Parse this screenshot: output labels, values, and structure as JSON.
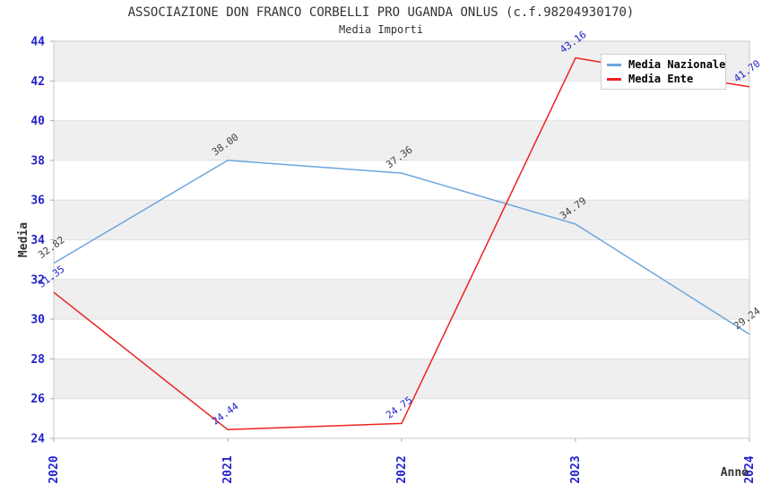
{
  "title": "ASSOCIAZIONE DON FRANCO CORBELLI PRO UGANDA ONLUS (c.f.98204930170)",
  "subtitle": "Media Importi",
  "axes": {
    "y_label": "Media",
    "x_label": "Anno"
  },
  "legend": {
    "items": [
      {
        "label": "Media Nazionale",
        "color": "#6ca6e0"
      },
      {
        "label": "Media Ente",
        "color": "#ee2222"
      }
    ]
  },
  "chart_data": {
    "type": "line",
    "title": "ASSOCIAZIONE DON FRANCO CORBELLI PRO UGANDA ONLUS (c.f.98204930170)",
    "subtitle": "Media Importi",
    "xlabel": "Anno",
    "ylabel": "Media",
    "categories": [
      "2020",
      "2021",
      "2022",
      "2023",
      "2024"
    ],
    "series": [
      {
        "name": "Media Nazionale",
        "color": "#6ca6e0",
        "label_color": "#404040",
        "values": [
          32.82,
          38.0,
          37.36,
          34.79,
          29.24
        ],
        "labels": [
          "32.82",
          "38.00",
          "37.36",
          "34.79",
          "29.24"
        ]
      },
      {
        "name": "Media Ente",
        "color": "#ee2222",
        "label_color": "#2222cc",
        "values": [
          31.35,
          24.44,
          24.75,
          43.16,
          41.7
        ],
        "labels": [
          "31.35",
          "24.44",
          "24.75",
          "43.16",
          "41.70"
        ]
      }
    ],
    "ylim": [
      24,
      44
    ],
    "y_ticks": [
      24,
      26,
      28,
      30,
      32,
      34,
      36,
      38,
      40,
      42,
      44
    ],
    "grid": "horizontal-bands-alternating",
    "band_color": "#efefef",
    "gridline_color": "#e0e0e0",
    "border_color": "#c8c8c8",
    "tick_label_color": "#2222cc",
    "axis_title_color": "#333333",
    "legend_position": "top-right"
  }
}
